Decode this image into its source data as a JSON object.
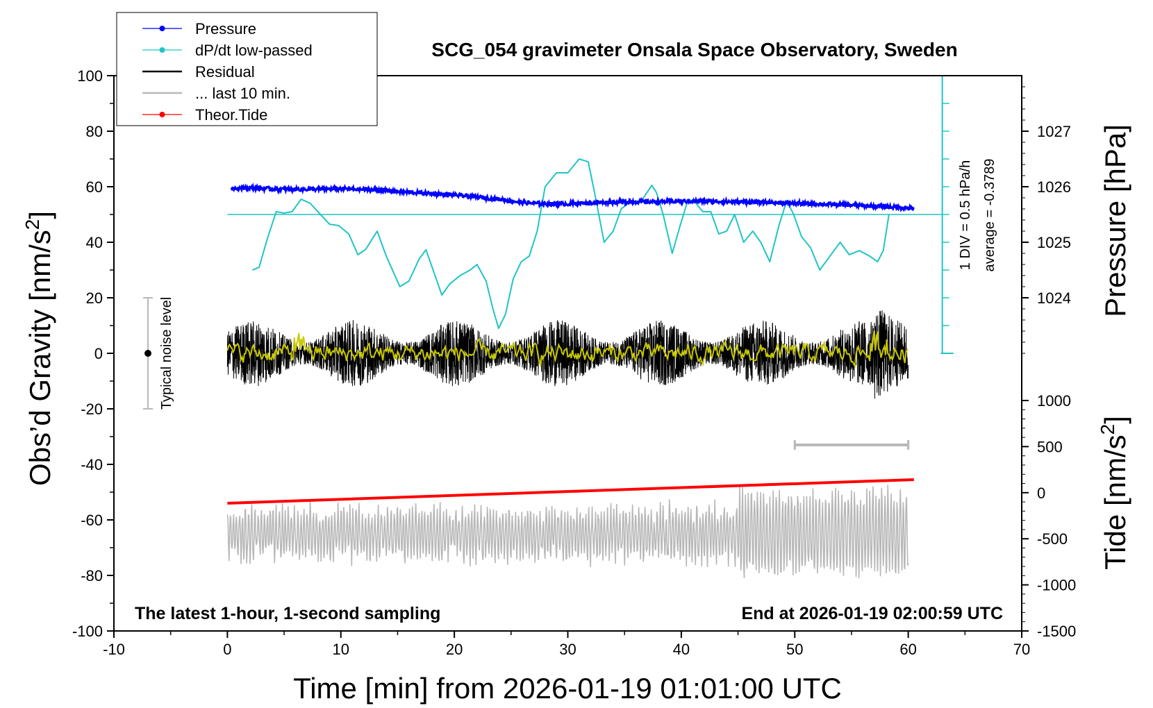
{
  "chart_data": {
    "type": "line",
    "title": "SCG_054 gravimeter Onsala Space Observatory, Sweden",
    "xlabel": "Time [min] from 2026-01-19 01:01:00 UTC",
    "ylabel": "Obs'd Gravity [nm/s²]",
    "y2label_pressure": "Pressure [hPa]",
    "y2label_tide": "Tide [nm/s²]",
    "xlim": [
      -10,
      70
    ],
    "ylim": [
      -100,
      100
    ],
    "x_ticks": [
      "-10",
      "0",
      "10",
      "20",
      "30",
      "40",
      "50",
      "60",
      "70"
    ],
    "y_ticks": [
      "100",
      "80",
      "60",
      "40",
      "20",
      "0",
      "-20",
      "-40",
      "-60",
      "-80",
      "-100"
    ],
    "pressure_ticks": [
      {
        "value": 1027,
        "label": "1027"
      },
      {
        "value": 1026,
        "label": "1026"
      },
      {
        "value": 1025,
        "label": "1025"
      },
      {
        "value": 1024,
        "label": "1024"
      }
    ],
    "pressure_mapping": {
      "hpa": [
        1024,
        1027
      ],
      "gravity": [
        20,
        80
      ]
    },
    "tide_ticks": [
      {
        "value": 1000,
        "label": "1000"
      },
      {
        "value": 500,
        "label": "500"
      },
      {
        "value": 0,
        "label": "0"
      },
      {
        "value": -500,
        "label": "-500"
      },
      {
        "value": -1000,
        "label": "-1000"
      },
      {
        "value": -1500,
        "label": "-1500"
      }
    ],
    "tide_mapping": {
      "tide": [
        -1500,
        1000
      ],
      "gravity": [
        -100,
        -17
      ]
    },
    "legend": {
      "position": "top-left",
      "entries": [
        {
          "label": "Pressure",
          "color": "#0000ff",
          "marker": "dot"
        },
        {
          "label": "dP/dt low-passed",
          "color": "#20c4c4",
          "marker": "dot"
        },
        {
          "label": "Residual",
          "color": "#000000",
          "marker": "none"
        },
        {
          "label": "... last 10 min.",
          "color": "#b8b8b8",
          "marker": "none"
        },
        {
          "label": "Theor.Tide",
          "color": "#ff0000",
          "marker": "dot"
        }
      ]
    },
    "series": [
      {
        "name": "Pressure",
        "color": "#0000ff",
        "x": [
          0.3,
          2,
          4,
          6,
          8,
          10,
          12,
          14,
          16,
          18,
          20,
          22,
          24,
          26,
          28,
          30,
          32,
          34,
          36,
          38,
          40,
          42,
          44,
          46,
          48,
          50,
          52,
          54,
          56,
          58,
          60.5
        ],
        "y": [
          59.5,
          59.6,
          59.2,
          59.1,
          59.1,
          59.3,
          59.0,
          58.6,
          58.0,
          57.5,
          57.0,
          56.3,
          55.5,
          54.3,
          53.8,
          53.8,
          54.2,
          54.5,
          54.6,
          54.6,
          54.8,
          54.8,
          54.6,
          54.5,
          54.3,
          54.0,
          53.8,
          53.5,
          53.2,
          52.8,
          52.2
        ]
      },
      {
        "name": "dP/dt low-passed",
        "color": "#20c4c4",
        "x": [
          2.2,
          2.8,
          3.5,
          4.3,
          5.0,
          5.7,
          6.5,
          7.3,
          8.2,
          9.0,
          9.8,
          10.7,
          11.5,
          12.2,
          13.2,
          14.0,
          15.2,
          16.0,
          16.9,
          17.5,
          18.3,
          18.9,
          19.6,
          20.5,
          21.4,
          22.0,
          22.8,
          23.4,
          23.9,
          24.5,
          25.2,
          25.9,
          26.6,
          27.3,
          28.0,
          29.0,
          30.0,
          31.0,
          31.8,
          32.4,
          33.2,
          34.0,
          34.7,
          35.5,
          36.5,
          37.4,
          37.8,
          38.4,
          39.2,
          39.9,
          40.6,
          41.2,
          41.9,
          42.6,
          43.3,
          44.0,
          44.7,
          45.5,
          46.3,
          47.0,
          47.8,
          48.6,
          49.3,
          49.9,
          50.6,
          51.4,
          52.2,
          53.1,
          54.0,
          54.8,
          55.7,
          56.6,
          57.3,
          57.8,
          58.3
        ],
        "y": [
          30,
          31,
          41,
          51,
          50.5,
          51,
          55.5,
          54,
          50,
          46.5,
          46,
          43,
          35.5,
          37.5,
          44,
          35,
          24,
          26,
          34,
          37.3,
          28,
          21,
          25,
          28,
          30,
          32,
          26,
          16,
          9,
          14,
          27,
          33,
          35,
          44,
          60,
          65,
          65,
          70,
          69,
          57,
          40,
          44,
          52,
          54.5,
          55,
          60.5,
          58,
          50,
          36,
          46,
          55.5,
          54.5,
          51,
          51,
          43,
          44,
          50,
          40,
          44,
          40,
          33,
          46,
          55,
          50,
          42,
          38,
          30,
          35,
          40,
          35.5,
          37,
          35,
          33,
          37,
          50
        ]
      },
      {
        "name": "Residual",
        "color": "#000000",
        "x": [
          0,
          60
        ],
        "y": [
          0,
          0
        ],
        "note": "high-frequency noise, amplitude approx ±12 nm/s²"
      },
      {
        "name": "Residual low-passed",
        "color": "#c8c800",
        "x": [
          0,
          60
        ],
        "y": [
          0,
          0
        ]
      },
      {
        "name": "... last 10 min.",
        "color": "#b8b8b8",
        "x": [
          0,
          60
        ],
        "y": [
          -65,
          -65
        ],
        "note": "scaled copy of last 10 minutes, approx -80 to -40"
      },
      {
        "name": "Theor.Tide",
        "color": "#ff0000",
        "x": [
          0,
          60.5
        ],
        "y": [
          -54,
          -45.5
        ]
      }
    ],
    "dpdt_reference_line": {
      "y": 50,
      "x_range": [
        0,
        63
      ]
    },
    "dpdt_scale": {
      "label": "1 DIV = 0.5 hPa/h",
      "average_label": "average = -0.3789",
      "x": 63,
      "y_range": [
        0,
        100
      ]
    },
    "noise_bar": {
      "label": "Typical noise level",
      "x": -7,
      "y_range": [
        -20,
        20
      ]
    },
    "last10_marker": {
      "x_range": [
        50,
        60
      ],
      "y": -33
    },
    "annotations": {
      "bottom_left": "The latest 1-hour, 1-second sampling",
      "bottom_right": "End at 2026-01-19 02:00:59 UTC"
    },
    "grid": false
  }
}
